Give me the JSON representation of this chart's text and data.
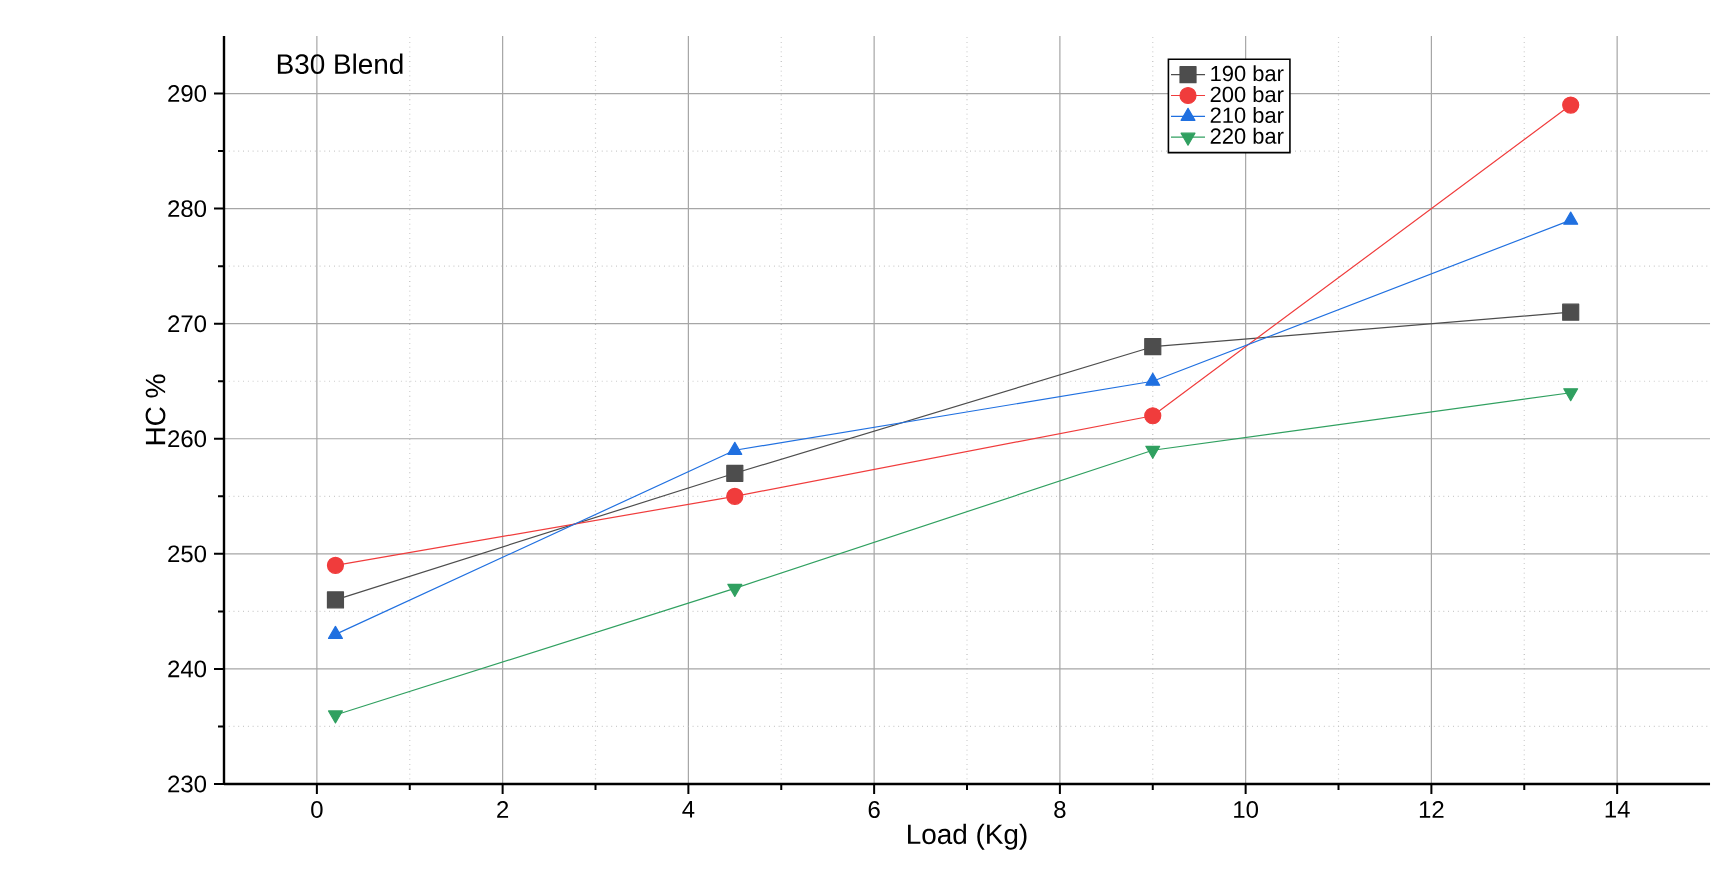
{
  "chart_data": {
    "type": "line",
    "title": "B30 Blend",
    "xlabel": "Load (Kg)",
    "ylabel": "HC %",
    "x": [
      0.2,
      4.5,
      9,
      13.5
    ],
    "series": [
      {
        "name": "190 bar",
        "color": "#4d4d4d",
        "marker": "square",
        "values": [
          246,
          257,
          268,
          271
        ]
      },
      {
        "name": "200 bar",
        "color": "#f03c3c",
        "marker": "circle",
        "values": [
          249,
          255,
          262,
          289
        ]
      },
      {
        "name": "210 bar",
        "color": "#2070e0",
        "marker": "triangle",
        "values": [
          243,
          259,
          265,
          279
        ]
      },
      {
        "name": "220 bar",
        "color": "#30a060",
        "marker": "triangle-down",
        "values": [
          236,
          247,
          259,
          264
        ]
      }
    ],
    "xlim": [
      -1,
      15
    ],
    "xticks": [
      0,
      2,
      4,
      6,
      8,
      10,
      12,
      14
    ],
    "ylim": [
      230,
      295
    ],
    "yticks": [
      230,
      240,
      250,
      260,
      270,
      280,
      290
    ],
    "grid": true,
    "legend": "top right",
    "line_style": "solid"
  }
}
